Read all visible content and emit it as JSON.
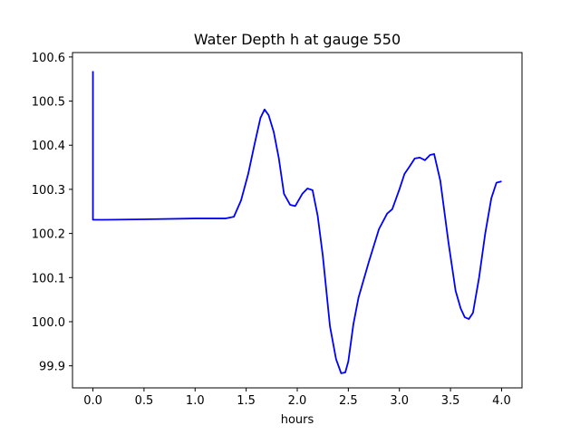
{
  "chart_data": {
    "type": "line",
    "title": "Water Depth h at gauge 550",
    "xlabel": "hours",
    "ylabel": "",
    "xlim": [
      -0.2,
      4.2
    ],
    "ylim": [
      99.85,
      100.61
    ],
    "grid": false,
    "legend": "none",
    "line_color": "#0000ff",
    "xticks": [
      0.0,
      0.5,
      1.0,
      1.5,
      2.0,
      2.5,
      3.0,
      3.5,
      4.0
    ],
    "xtick_labels": [
      "0.0",
      "0.5",
      "1.0",
      "1.5",
      "2.0",
      "2.5",
      "3.0",
      "3.5",
      "4.0"
    ],
    "yticks": [
      99.9,
      100.0,
      100.1,
      100.2,
      100.3,
      100.4,
      100.5,
      100.6
    ],
    "ytick_labels": [
      "99.9",
      "100.0",
      "100.1",
      "100.2",
      "100.3",
      "100.4",
      "100.5",
      "100.6"
    ],
    "series": [
      {
        "x": [
          0.0,
          0.0,
          0.1,
          0.5,
          1.0,
          1.3,
          1.38,
          1.45,
          1.52,
          1.58,
          1.64,
          1.68,
          1.72,
          1.77,
          1.82,
          1.87,
          1.93,
          1.98,
          2.05,
          2.1,
          2.15,
          2.2,
          2.25,
          2.32,
          2.38,
          2.43,
          2.47,
          2.5,
          2.55,
          2.6,
          2.7,
          2.8,
          2.88,
          2.93,
          3.0,
          3.05,
          3.1,
          3.15,
          3.2,
          3.25,
          3.3,
          3.34,
          3.4,
          3.48,
          3.55,
          3.6,
          3.64,
          3.68,
          3.72,
          3.78,
          3.84,
          3.9,
          3.95,
          4.0
        ],
        "y": [
          100.568,
          100.231,
          100.231,
          100.232,
          100.234,
          100.234,
          100.238,
          100.275,
          100.335,
          100.4,
          100.462,
          100.481,
          100.468,
          100.43,
          100.37,
          100.29,
          100.265,
          100.262,
          100.29,
          100.302,
          100.298,
          100.24,
          100.15,
          99.99,
          99.915,
          99.883,
          99.885,
          99.91,
          99.995,
          100.055,
          100.135,
          100.21,
          100.245,
          100.255,
          100.3,
          100.335,
          100.352,
          100.37,
          100.372,
          100.366,
          100.378,
          100.38,
          100.32,
          100.18,
          100.07,
          100.03,
          100.01,
          100.006,
          100.02,
          100.1,
          100.2,
          100.28,
          100.315,
          100.318
        ]
      }
    ]
  }
}
